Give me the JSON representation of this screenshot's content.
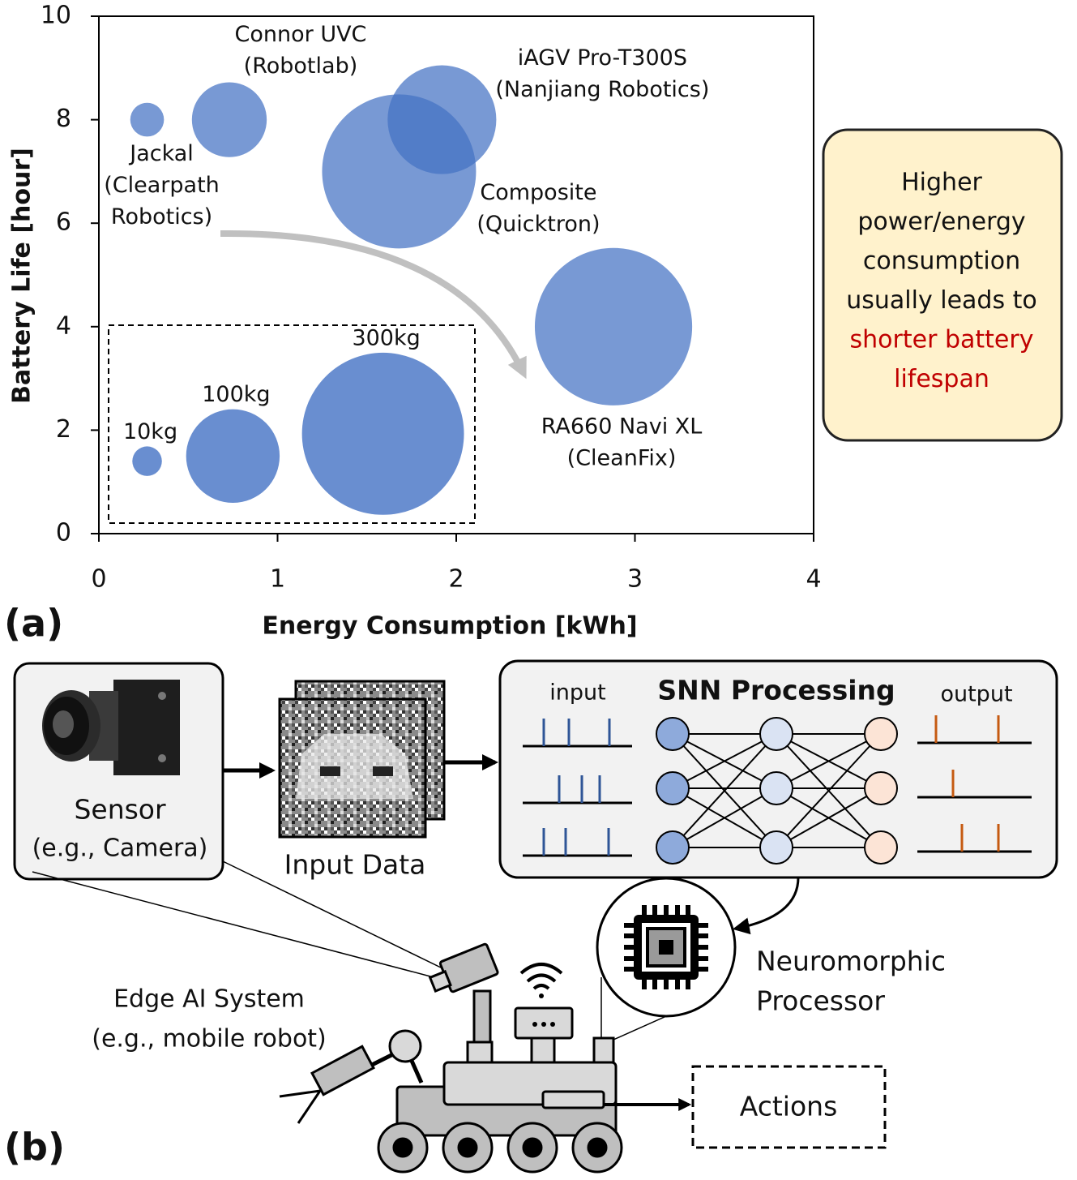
{
  "chart_data": {
    "type": "bubble",
    "panel_label": "(a)",
    "xlabel": "Energy Consumption [kWh]",
    "ylabel": "Battery Life [hour]",
    "x": [
      0.27,
      0.73,
      1.68,
      1.92,
      2.88
    ],
    "values": [
      8,
      8,
      7,
      8,
      4
    ],
    "sizes": [
      13,
      64,
      271,
      135,
      283
    ],
    "point_labels": [
      [
        "Jackal",
        "(Clearpath",
        "Robotics)"
      ],
      [
        "Connor UVC",
        "(Robotlab)"
      ],
      [
        "Composite",
        "(Quicktron)"
      ],
      [
        "iAGV Pro-T300S",
        "(Nanjiang Robotics)"
      ],
      [
        "RA660 Navi XL",
        "(CleanFix)"
      ]
    ],
    "color": "#4472c4",
    "xlim": [
      0,
      4
    ],
    "ylim": [
      0,
      10
    ],
    "xticks": [
      0,
      1,
      2,
      3,
      4
    ],
    "yticks": [
      0,
      2,
      4,
      6,
      8,
      10
    ],
    "size_legend": {
      "labels": [
        "10kg",
        "100kg",
        "300kg"
      ],
      "sizes": [
        10,
        100,
        300
      ],
      "x": [
        0.27,
        0.75,
        1.59
      ],
      "values": [
        1.4,
        1.5,
        1.93
      ]
    },
    "annotation": {
      "lines": [
        "Higher",
        "power/energy",
        "consumption",
        "usually leads to"
      ],
      "highlight_lines": [
        "shorter battery",
        "lifespan"
      ],
      "highlight_color": "#c00000"
    }
  },
  "diagram": {
    "panel_label": "(b)",
    "sensor": {
      "title": "Sensor",
      "subtitle": "(e.g., Camera)"
    },
    "input_data": "Input Data",
    "snn": {
      "title": "SNN Processing",
      "input": "input",
      "output": "output"
    },
    "processor": [
      "Neuromorphic",
      "Processor"
    ],
    "system": [
      "Edge AI System",
      "(e.g., mobile robot)"
    ],
    "actions": "Actions"
  }
}
